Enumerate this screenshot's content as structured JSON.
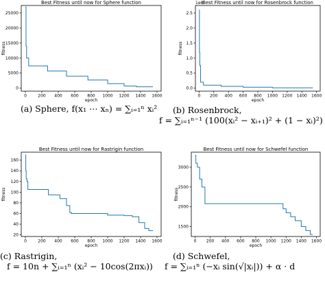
{
  "chart_data": [
    {
      "type": "line",
      "title": "Best Fitness until now for Sphere function",
      "xlabel": "epoch",
      "ylabel": "fitness",
      "xlim": [
        -50,
        1650
      ],
      "ylim": [
        -1000,
        27500
      ],
      "xticks": [
        0,
        200,
        400,
        600,
        800,
        1000,
        1200,
        1400,
        1600
      ],
      "yticks": [
        0,
        5000,
        10000,
        15000,
        20000,
        25000
      ],
      "ytick_labels": [
        "0",
        "5000",
        "10000",
        "15000",
        "20000",
        "25000"
      ],
      "exponent_label": "",
      "color": "#1f77b4",
      "grid": false,
      "series": [
        {
          "x": [
            0,
            8,
            8,
            15,
            15,
            40,
            40,
            270,
            270,
            500,
            500,
            760,
            760,
            1000,
            1000,
            1200,
            1200,
            1350,
            1350,
            1550
          ],
          "y": [
            27000,
            27000,
            14000,
            14000,
            10000,
            10000,
            7400,
            7400,
            5700,
            5700,
            4000,
            4000,
            2700,
            2700,
            1500,
            1500,
            700,
            700,
            450,
            450
          ]
        }
      ],
      "caption": [
        "(a) Sphere, f(x₁ ⋯ xₙ) = ∑ᵢ₌₁ⁿ xᵢ²"
      ]
    },
    {
      "type": "line",
      "title": "Best Fitness until now for Rosenbrock function",
      "xlabel": "epoch",
      "ylabel": "fitness",
      "xlim": [
        -50,
        1650
      ],
      "ylim": [
        -0.1,
        2.75
      ],
      "xticks": [
        0,
        200,
        400,
        600,
        800,
        1000,
        1200,
        1400,
        1600
      ],
      "yticks": [
        0,
        0.5,
        1.0,
        1.5,
        2.0,
        2.5
      ],
      "ytick_labels": [
        "0.0",
        "0.5",
        "1.0",
        "1.5",
        "2.0",
        "2.5"
      ],
      "exponent_label": "1e8",
      "color": "#1f77b4",
      "grid": false,
      "series": [
        {
          "x": [
            0,
            5,
            5,
            10,
            10,
            20,
            20,
            60,
            60,
            300,
            300,
            600,
            600,
            1000,
            1000,
            1550
          ],
          "y": [
            2.6,
            2.6,
            1.2,
            1.2,
            0.75,
            0.75,
            0.2,
            0.2,
            0.1,
            0.1,
            0.06,
            0.06,
            0.03,
            0.03,
            0.01,
            0.01
          ]
        }
      ],
      "caption": [
        "(b) Rosenbrock,",
        "f = ∑ᵢ₌₁ⁿ⁻¹ (100(xᵢ² − xᵢ₊₁)² + (1 − xᵢ)²)"
      ]
    },
    {
      "type": "line",
      "title": "Best Fitness until now for Rastrigin function",
      "xlabel": "epoch",
      "ylabel": "fitness",
      "xlim": [
        -50,
        1650
      ],
      "ylim": [
        17,
        175
      ],
      "xticks": [
        0,
        200,
        400,
        600,
        800,
        1000,
        1200,
        1400,
        1600
      ],
      "yticks": [
        20,
        40,
        60,
        80,
        100,
        120,
        140,
        160
      ],
      "ytick_labels": [
        "20",
        "40",
        "60",
        "80",
        "100",
        "120",
        "140",
        "160"
      ],
      "exponent_label": "",
      "color": "#1f77b4",
      "grid": false,
      "series": [
        {
          "x": [
            0,
            5,
            5,
            10,
            10,
            20,
            20,
            30,
            30,
            280,
            280,
            420,
            420,
            500,
            500,
            540,
            540,
            560,
            560,
            1000,
            1000,
            1200,
            1200,
            1300,
            1300,
            1380,
            1380,
            1450,
            1450,
            1500,
            1500,
            1550
          ],
          "y": [
            170,
            170,
            140,
            140,
            125,
            125,
            120,
            120,
            105,
            105,
            95,
            95,
            88,
            88,
            75,
            75,
            62,
            62,
            60,
            60,
            57,
            57,
            56,
            56,
            54,
            54,
            43,
            43,
            32,
            32,
            28,
            28
          ]
        }
      ],
      "caption": [
        "(c) Rastrigin,",
        "f = 10n + ∑ᵢ₌₁ⁿ (xᵢ² − 10cos(2πxᵢ))"
      ]
    },
    {
      "type": "line",
      "title": "Best Fitness until now for Schwefel function",
      "xlabel": "epoch",
      "ylabel": "fitness",
      "xlim": [
        -50,
        1650
      ],
      "ylim": [
        1250,
        3380
      ],
      "xticks": [
        0,
        200,
        400,
        600,
        800,
        1000,
        1200,
        1400,
        1600
      ],
      "yticks": [
        1500,
        2000,
        2500,
        3000
      ],
      "ytick_labels": [
        "1500",
        "2000",
        "2500",
        "3000"
      ],
      "exponent_label": "",
      "color": "#1f77b4",
      "grid": false,
      "series": [
        {
          "x": [
            0,
            10,
            10,
            30,
            30,
            60,
            60,
            90,
            90,
            130,
            130,
            1160,
            1160,
            1200,
            1200,
            1260,
            1260,
            1320,
            1320,
            1400,
            1400,
            1460,
            1460,
            1520,
            1520,
            1550
          ],
          "y": [
            3300,
            3300,
            3100,
            3100,
            3000,
            3000,
            2700,
            2700,
            2500,
            2500,
            2080,
            2080,
            1950,
            1950,
            1850,
            1850,
            1750,
            1750,
            1650,
            1650,
            1500,
            1500,
            1400,
            1400,
            1300,
            1300
          ]
        }
      ],
      "caption": [
        "(d) Schwefel,",
        "f = ∑ᵢ₌₁ⁿ (−xᵢ sin(√|xᵢ|)) + α · d"
      ]
    }
  ]
}
